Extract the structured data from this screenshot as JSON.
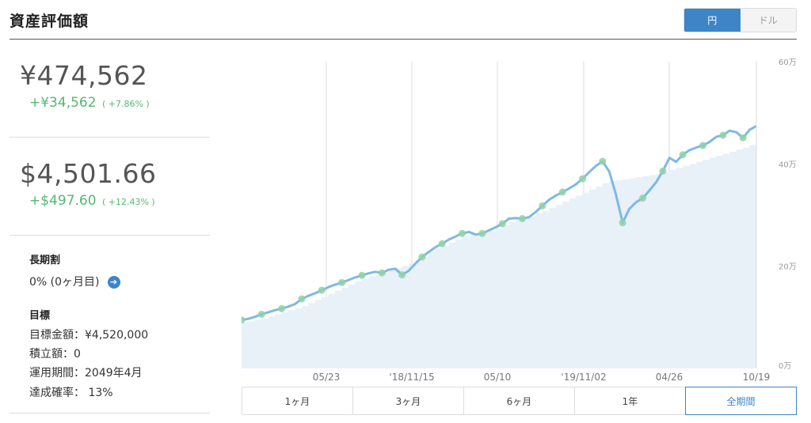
{
  "header": {
    "title": "資産評価額",
    "currency_toggle": {
      "yen_label": "円",
      "usd_label": "ドル",
      "selected": "円"
    }
  },
  "summary": {
    "yen_total": "¥474,562",
    "yen_gain": "+¥34,562",
    "yen_gain_pct": "( +7.86% )",
    "usd_total": "$4,501.66",
    "usd_gain": "+$497.60",
    "usd_gain_pct": "( +12.43% )"
  },
  "long_term": {
    "heading": "長期割",
    "value": "0% (0ヶ月目)"
  },
  "goal": {
    "heading": "目標",
    "target_amount": "目標金額：¥4,520,000",
    "contribution": "積立額：0",
    "period": "運用期間：2049年4月",
    "probability": "達成確率： 13%"
  },
  "colors": {
    "accent": "#3d85c6",
    "gain": "#54b96f",
    "line": "#7fb9e3",
    "area": "#e8f0f8"
  },
  "chart_data": {
    "type": "line",
    "x_ticks": [
      "05/23",
      "'18/11/15",
      "05/10",
      "'19/11/02",
      "04/26",
      "10/19"
    ],
    "y_ticks": [
      "0万",
      "20万",
      "40万",
      "60万"
    ],
    "ylim": [
      0,
      600000
    ],
    "series": [
      {
        "values": [
          95000,
          97000,
          101000,
          106000,
          110000,
          114000,
          117000,
          121000,
          126000,
          136000,
          142000,
          147000,
          153000,
          159000,
          164000,
          168000,
          173000,
          178000,
          182000,
          186000,
          189000,
          187000,
          193000,
          195000,
          183000,
          191000,
          205000,
          218000,
          228000,
          237000,
          244000,
          252000,
          258000,
          264000,
          267000,
          262000,
          264000,
          270000,
          276000,
          283000,
          293000,
          294000,
          293000,
          296000,
          306000,
          318000,
          330000,
          338000,
          345000,
          352000,
          360000,
          371000,
          384000,
          396000,
          405000,
          385000,
          340000,
          285000,
          312000,
          325000,
          333000,
          348000,
          364000,
          386000,
          412000,
          404000,
          418000,
          427000,
          432000,
          436000,
          443000,
          453000,
          456000,
          465000,
          462000,
          451000,
          467000,
          474000
        ]
      },
      {
        "values": [
          90000,
          92000,
          95000,
          98000,
          102000,
          106000,
          110000,
          114000,
          118000,
          122000,
          128000,
          134000,
          140000,
          146000,
          152000,
          158000,
          164000,
          170000,
          175000,
          180000,
          185000,
          188000,
          192000,
          196000,
          200000,
          205000,
          212000,
          220000,
          228000,
          235000,
          240000,
          246000,
          252000,
          258000,
          262000,
          264000,
          266000,
          270000,
          274000,
          280000,
          286000,
          290000,
          294000,
          298000,
          303000,
          308000,
          314000,
          320000,
          326000,
          332000,
          338000,
          344000,
          350000,
          356000,
          362000,
          366000,
          368000,
          370000,
          372000,
          374000,
          376000,
          378000,
          380000,
          384000,
          388000,
          392000,
          396000,
          400000,
          404000,
          408000,
          412000,
          416000,
          420000,
          424000,
          428000,
          432000,
          436000,
          440000
        ]
      }
    ]
  },
  "ranges": [
    "1ヶ月",
    "3ヶ月",
    "6ヶ月",
    "1年",
    "全期間"
  ],
  "active_range": "全期間"
}
